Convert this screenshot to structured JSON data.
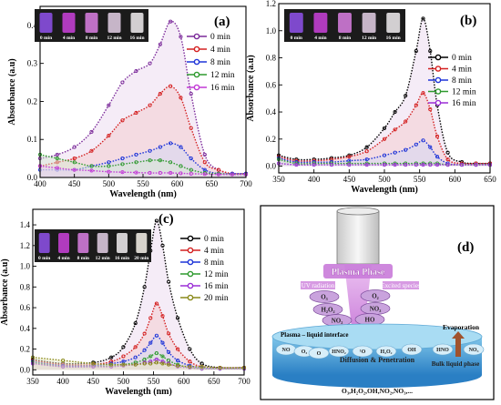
{
  "chart_data": [
    {
      "type": "line",
      "panel": "(a)",
      "xlabel": "Wavelength (nm)",
      "ylabel": "Absorbance (a.u)",
      "xlim": [
        400,
        700
      ],
      "ylim": [
        0,
        0.45
      ],
      "xticks": [
        400,
        450,
        500,
        550,
        600,
        650,
        700
      ],
      "yticks": [
        0.0,
        0.1,
        0.2,
        0.3,
        0.4
      ],
      "inset_labels": [
        "0 min",
        "4 min",
        "8 min",
        "12 min",
        "16 min"
      ],
      "x": [
        400,
        425,
        450,
        475,
        500,
        520,
        540,
        560,
        575,
        590,
        605,
        620,
        640,
        660,
        680,
        700
      ],
      "series": [
        {
          "name": "0 min",
          "color": "#7b2a9a",
          "values": [
            0.05,
            0.06,
            0.08,
            0.12,
            0.19,
            0.25,
            0.28,
            0.3,
            0.35,
            0.41,
            0.37,
            0.22,
            0.06,
            0.02,
            0.01,
            0.01
          ]
        },
        {
          "name": "4 min",
          "color": "#d42020",
          "values": [
            0.03,
            0.04,
            0.05,
            0.07,
            0.11,
            0.15,
            0.17,
            0.19,
            0.22,
            0.24,
            0.21,
            0.13,
            0.04,
            0.02,
            0.01,
            0.01
          ]
        },
        {
          "name": "8 min",
          "color": "#1f35d8",
          "values": [
            0.02,
            0.02,
            0.02,
            0.03,
            0.04,
            0.05,
            0.06,
            0.07,
            0.08,
            0.09,
            0.08,
            0.05,
            0.02,
            0.01,
            0.01,
            0.01
          ]
        },
        {
          "name": "12 min",
          "color": "#2f9a2f",
          "values": [
            0.06,
            0.05,
            0.04,
            0.03,
            0.03,
            0.035,
            0.04,
            0.045,
            0.045,
            0.04,
            0.03,
            0.02,
            0.012,
            0.01,
            0.008,
            0.008
          ]
        },
        {
          "name": "16 min",
          "color": "#c23ad6",
          "values": [
            0.03,
            0.025,
            0.02,
            0.018,
            0.015,
            0.014,
            0.013,
            0.012,
            0.012,
            0.012,
            0.011,
            0.01,
            0.009,
            0.008,
            0.008,
            0.008
          ]
        }
      ]
    },
    {
      "type": "line",
      "panel": "(b)",
      "xlabel": "Wavelength (nm)",
      "ylabel": "Absorbance (a.u)",
      "xlim": [
        350,
        650
      ],
      "ylim": [
        -0.05,
        1.2
      ],
      "xticks": [
        350,
        400,
        450,
        500,
        550,
        600,
        650
      ],
      "yticks": [
        0.0,
        0.2,
        0.4,
        0.6,
        0.8,
        1.0,
        1.2
      ],
      "inset_labels": [
        "0 min",
        "4 min",
        "8 min",
        "12 min",
        "16 min"
      ],
      "x": [
        350,
        375,
        400,
        425,
        450,
        475,
        500,
        515,
        530,
        545,
        555,
        565,
        575,
        590,
        610,
        630,
        650
      ],
      "series": [
        {
          "name": "0 min",
          "color": "#000000",
          "values": [
            0.08,
            0.05,
            0.05,
            0.06,
            0.08,
            0.14,
            0.28,
            0.4,
            0.52,
            0.85,
            1.09,
            0.85,
            0.45,
            0.1,
            0.03,
            0.02,
            0.02
          ]
        },
        {
          "name": "4 min",
          "color": "#d42020",
          "values": [
            0.07,
            0.04,
            0.04,
            0.05,
            0.07,
            0.11,
            0.2,
            0.27,
            0.33,
            0.45,
            0.54,
            0.42,
            0.22,
            0.05,
            0.02,
            0.02,
            0.02
          ]
        },
        {
          "name": "8 min",
          "color": "#1f35d8",
          "values": [
            0.06,
            0.03,
            0.03,
            0.03,
            0.04,
            0.05,
            0.08,
            0.1,
            0.12,
            0.16,
            0.19,
            0.14,
            0.07,
            0.02,
            0.01,
            0.01,
            0.01
          ]
        },
        {
          "name": "12 min",
          "color": "#2f9a2f",
          "values": [
            0.05,
            0.02,
            0.02,
            0.02,
            0.02,
            0.02,
            0.02,
            0.02,
            0.02,
            0.02,
            0.02,
            0.02,
            0.02,
            0.01,
            0.01,
            0.01,
            0.01
          ]
        },
        {
          "name": "16 min",
          "color": "#9b2fd6",
          "values": [
            0.02,
            0.01,
            0.01,
            0.01,
            0.01,
            0.01,
            0.01,
            0.01,
            0.01,
            0.01,
            0.01,
            0.01,
            0.01,
            0.01,
            0.01,
            0.01,
            0.01
          ]
        }
      ]
    },
    {
      "type": "line",
      "panel": "(c)",
      "xlabel": "Wavelength (nm)",
      "ylabel": "Absorbance (a.u)",
      "xlim": [
        350,
        700
      ],
      "ylim": [
        -0.05,
        1.55
      ],
      "xticks": [
        350,
        400,
        450,
        500,
        550,
        600,
        650,
        700
      ],
      "yticks": [
        0.0,
        0.2,
        0.4,
        0.6,
        0.8,
        1.0,
        1.2,
        1.4
      ],
      "inset_labels": [
        "0 min",
        "4 min",
        "8 min",
        "12 min",
        "16 min",
        "20 min"
      ],
      "x": [
        350,
        400,
        450,
        480,
        500,
        520,
        535,
        545,
        555,
        565,
        575,
        590,
        610,
        630,
        660,
        700
      ],
      "series": [
        {
          "name": "0 min",
          "color": "#000000",
          "values": [
            0.1,
            0.06,
            0.07,
            0.12,
            0.22,
            0.45,
            0.8,
            1.15,
            1.44,
            1.2,
            0.85,
            0.5,
            0.2,
            0.06,
            0.02,
            0.02
          ]
        },
        {
          "name": "4 min",
          "color": "#d42020",
          "values": [
            0.09,
            0.05,
            0.05,
            0.08,
            0.13,
            0.22,
            0.35,
            0.5,
            0.64,
            0.52,
            0.35,
            0.2,
            0.08,
            0.03,
            0.02,
            0.02
          ]
        },
        {
          "name": "8 min",
          "color": "#1f35d8",
          "values": [
            0.08,
            0.04,
            0.04,
            0.06,
            0.08,
            0.12,
            0.19,
            0.26,
            0.33,
            0.26,
            0.17,
            0.09,
            0.04,
            0.02,
            0.01,
            0.01
          ]
        },
        {
          "name": "12 min",
          "color": "#2f9a2f",
          "values": [
            0.07,
            0.03,
            0.03,
            0.04,
            0.05,
            0.07,
            0.1,
            0.13,
            0.16,
            0.13,
            0.09,
            0.05,
            0.02,
            0.01,
            0.01,
            0.01
          ]
        },
        {
          "name": "16 min",
          "color": "#9b2fd6",
          "values": [
            0.06,
            0.03,
            0.03,
            0.03,
            0.04,
            0.05,
            0.07,
            0.08,
            0.1,
            0.08,
            0.06,
            0.03,
            0.02,
            0.01,
            0.01,
            0.01
          ]
        },
        {
          "name": "20 min",
          "color": "#8a8a1a",
          "values": [
            0.12,
            0.09,
            0.06,
            0.05,
            0.05,
            0.05,
            0.06,
            0.06,
            0.07,
            0.06,
            0.05,
            0.04,
            0.03,
            0.03,
            0.02,
            0.02
          ]
        }
      ]
    }
  ],
  "diagram": {
    "panel": "(d)",
    "phase_label": "Plasma Phase",
    "uv_label": "UV radiation",
    "excited_label": "Excited species",
    "species_left": [
      "O₃",
      "H₂O₂",
      "NO₂"
    ],
    "species_right": [
      "O₂",
      "NO₂",
      "HO"
    ],
    "interface_label": "Plasma – liquid interface",
    "evaporation_label": "Evaporation",
    "diffusion_label": "Diffusion & Penetration",
    "bulk_label": "Bulk liquid phase",
    "bottom_label": "O₃,H₂O₂,OH,NO₂,NO₃,...",
    "bubbles": [
      "NO",
      "O₃",
      "O",
      "HNO₂",
      "¹O",
      "H₂O₂",
      "OH",
      "HNO",
      "NO₃"
    ]
  }
}
